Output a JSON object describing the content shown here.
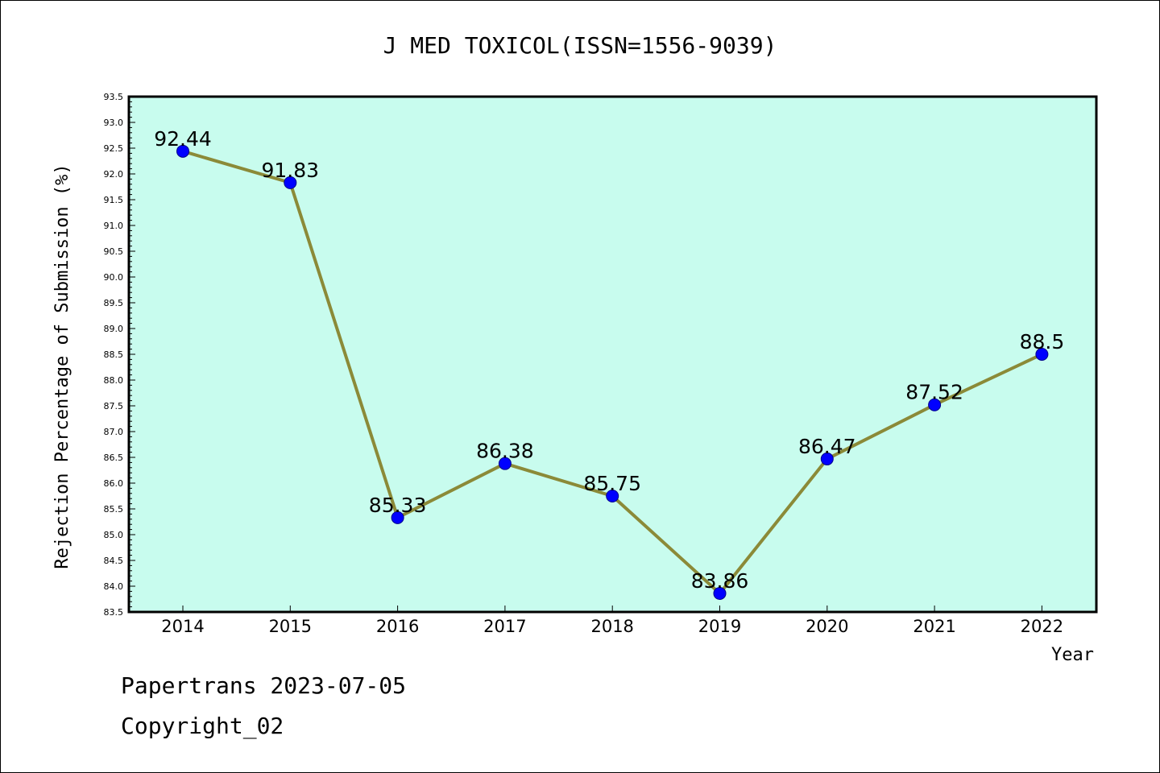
{
  "chart_data": {
    "type": "line",
    "title": "J MED TOXICOL(ISSN=1556-9039)",
    "xlabel": "Year",
    "ylabel": "Rejection Percentage of Submission (%)",
    "categories": [
      "2014",
      "2015",
      "2016",
      "2017",
      "2018",
      "2019",
      "2020",
      "2021",
      "2022"
    ],
    "values": [
      92.44,
      91.83,
      85.33,
      86.38,
      85.75,
      83.86,
      86.47,
      87.52,
      88.5
    ],
    "data_labels": [
      "92.44",
      "91.83",
      "85.33",
      "86.38",
      "85.75",
      "83.86",
      "86.47",
      "87.52",
      "88.5"
    ],
    "ylim": [
      83.5,
      93.5
    ],
    "yticks": [
      "83.5",
      "84.0",
      "84.5",
      "85.0",
      "85.5",
      "86.0",
      "86.5",
      "87.0",
      "87.5",
      "88.0",
      "88.5",
      "89.0",
      "89.5",
      "90.0",
      "90.5",
      "91.0",
      "91.5",
      "92.0",
      "92.5",
      "93.0",
      "93.5"
    ],
    "grid": false,
    "legend": "none",
    "colors": {
      "plot_background": "#c8fcee",
      "line": "#8b8a38",
      "marker": "#0000ff",
      "axes": "#000000"
    }
  },
  "footer": {
    "line1": "Papertrans 2023-07-05",
    "line2": "Copyright_02"
  }
}
